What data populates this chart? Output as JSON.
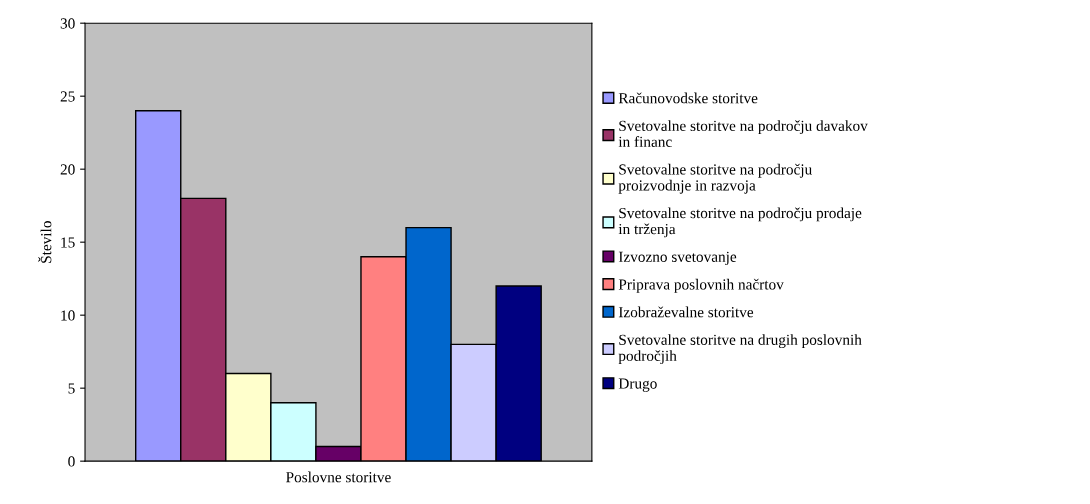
{
  "chart_data": {
    "type": "bar",
    "xlabel": "Poslovne storitve",
    "ylabel": "Število",
    "categories": [
      null
    ],
    "ylim": [
      0,
      30
    ],
    "yticks": [
      0,
      5,
      10,
      15,
      20,
      25,
      30
    ],
    "grid": false,
    "legend": "right",
    "series": [
      {
        "name": "Računovodske storitve",
        "color": "#9999ff",
        "values": [
          24
        ]
      },
      {
        "name": "Svetovalne storitve na področju davakov in financ",
        "color": "#993366",
        "values": [
          18
        ]
      },
      {
        "name": "Svetovalne storitve na področju proizvodnje in razvoja",
        "color": "#ffffcc",
        "values": [
          6
        ]
      },
      {
        "name": "Svetovalne storitve na področju prodaje in trženja",
        "color": "#ccffff",
        "values": [
          4
        ]
      },
      {
        "name": "Izvozno svetovanje",
        "color": "#660066",
        "values": [
          1
        ]
      },
      {
        "name": "Priprava poslovnih načrtov",
        "color": "#ff8080",
        "values": [
          14
        ]
      },
      {
        "name": "Izobraževalne storitve",
        "color": "#0066cc",
        "values": [
          16
        ]
      },
      {
        "name": "Svetovalne storitve na drugih poslovnih področjih",
        "color": "#ccccff",
        "values": [
          8
        ]
      },
      {
        "name": "Drugo",
        "color": "#000080",
        "values": [
          12
        ]
      }
    ]
  }
}
